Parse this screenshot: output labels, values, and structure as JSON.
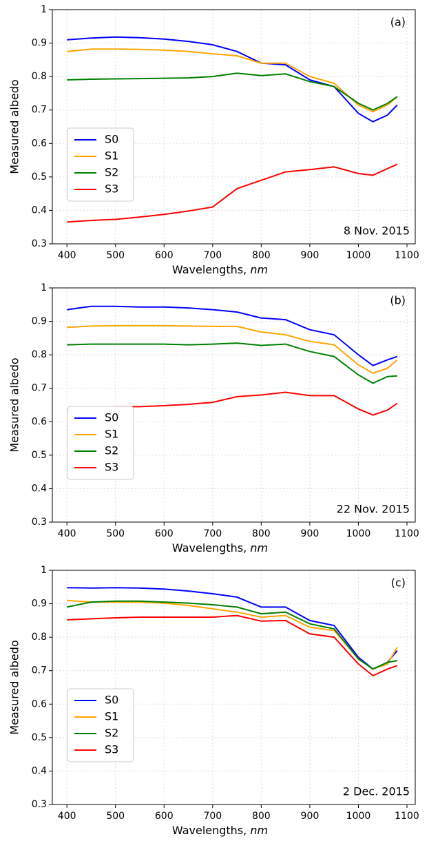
{
  "chart_data": [
    {
      "type": "line",
      "panel_label": "(a)",
      "annotation": "8 Nov. 2015",
      "ylabel": "Measured albedo",
      "xlabel": {
        "text": "Wavelengths,",
        "unit": "nm"
      },
      "x": [
        400,
        450,
        500,
        550,
        600,
        650,
        700,
        750,
        800,
        850,
        900,
        950,
        1000,
        1030,
        1060,
        1080
      ],
      "xlim": [
        370,
        1117
      ],
      "xticks": [
        400,
        500,
        600,
        700,
        800,
        900,
        1000,
        1100
      ],
      "ylim": [
        0.3,
        1.0
      ],
      "yticks": [
        0.3,
        0.4,
        0.5,
        0.6,
        0.7,
        0.8,
        0.9,
        1.0
      ],
      "grid": true,
      "legend_loc": "lower left",
      "series": [
        {
          "name": "S0",
          "color": "#0000ff",
          "values": [
            0.91,
            0.915,
            0.918,
            0.916,
            0.912,
            0.905,
            0.895,
            0.875,
            0.84,
            0.835,
            0.79,
            0.77,
            0.69,
            0.665,
            0.685,
            0.715
          ]
        },
        {
          "name": "S1",
          "color": "#ffa500",
          "values": [
            0.875,
            0.882,
            0.882,
            0.881,
            0.879,
            0.875,
            0.868,
            0.862,
            0.84,
            0.84,
            0.8,
            0.78,
            0.715,
            0.695,
            0.715,
            0.74
          ]
        },
        {
          "name": "S2",
          "color": "#008000",
          "values": [
            0.79,
            0.792,
            0.793,
            0.794,
            0.795,
            0.796,
            0.8,
            0.81,
            0.803,
            0.808,
            0.785,
            0.77,
            0.72,
            0.7,
            0.72,
            0.74
          ]
        },
        {
          "name": "S3",
          "color": "#ff0000",
          "values": [
            0.365,
            0.37,
            0.373,
            0.38,
            0.388,
            0.398,
            0.41,
            0.465,
            0.49,
            0.515,
            0.522,
            0.53,
            0.51,
            0.505,
            0.525,
            0.538
          ]
        }
      ]
    },
    {
      "type": "line",
      "panel_label": "(b)",
      "annotation": "22 Nov. 2015",
      "ylabel": "Measured albedo",
      "xlabel": {
        "text": "Wavelengths,",
        "unit": "nm"
      },
      "x": [
        400,
        450,
        500,
        550,
        600,
        650,
        700,
        750,
        800,
        850,
        900,
        950,
        1000,
        1030,
        1060,
        1080
      ],
      "xlim": [
        370,
        1117
      ],
      "xticks": [
        400,
        500,
        600,
        700,
        800,
        900,
        1000,
        1100
      ],
      "ylim": [
        0.3,
        1.0
      ],
      "yticks": [
        0.3,
        0.4,
        0.5,
        0.6,
        0.7,
        0.8,
        0.9,
        1.0
      ],
      "grid": true,
      "legend_loc": "lower left",
      "series": [
        {
          "name": "S0",
          "color": "#0000ff",
          "values": [
            0.935,
            0.945,
            0.945,
            0.943,
            0.943,
            0.94,
            0.935,
            0.928,
            0.91,
            0.905,
            0.875,
            0.86,
            0.8,
            0.768,
            0.785,
            0.795
          ]
        },
        {
          "name": "S1",
          "color": "#ffa500",
          "values": [
            0.882,
            0.886,
            0.887,
            0.887,
            0.887,
            0.886,
            0.885,
            0.885,
            0.868,
            0.86,
            0.84,
            0.83,
            0.77,
            0.745,
            0.76,
            0.785
          ]
        },
        {
          "name": "S2",
          "color": "#008000",
          "values": [
            0.83,
            0.832,
            0.832,
            0.832,
            0.832,
            0.83,
            0.832,
            0.835,
            0.828,
            0.832,
            0.81,
            0.795,
            0.74,
            0.715,
            0.735,
            0.737
          ]
        },
        {
          "name": "S3",
          "color": "#ff0000",
          "values": [
            0.632,
            0.642,
            0.645,
            0.645,
            0.648,
            0.652,
            0.658,
            0.675,
            0.68,
            0.688,
            0.678,
            0.678,
            0.638,
            0.62,
            0.635,
            0.655
          ]
        }
      ]
    },
    {
      "type": "line",
      "panel_label": "(c)",
      "annotation": "2 Dec. 2015",
      "ylabel": "Measured albedo",
      "xlabel": {
        "text": "Wavelengths,",
        "unit": "nm"
      },
      "x": [
        400,
        450,
        500,
        550,
        600,
        650,
        700,
        750,
        800,
        850,
        900,
        950,
        1000,
        1030,
        1060,
        1080
      ],
      "xlim": [
        370,
        1117
      ],
      "xticks": [
        400,
        500,
        600,
        700,
        800,
        900,
        1000,
        1100
      ],
      "ylim": [
        0.3,
        1.0
      ],
      "yticks": [
        0.3,
        0.4,
        0.5,
        0.6,
        0.7,
        0.8,
        0.9,
        1.0
      ],
      "grid": true,
      "legend_loc": "lower left",
      "series": [
        {
          "name": "S0",
          "color": "#0000ff",
          "values": [
            0.948,
            0.947,
            0.948,
            0.947,
            0.944,
            0.938,
            0.93,
            0.92,
            0.89,
            0.89,
            0.85,
            0.835,
            0.74,
            0.705,
            0.725,
            0.76
          ]
        },
        {
          "name": "S1",
          "color": "#ffa500",
          "values": [
            0.91,
            0.905,
            0.905,
            0.905,
            0.902,
            0.895,
            0.885,
            0.875,
            0.86,
            0.865,
            0.83,
            0.82,
            0.735,
            0.705,
            0.72,
            0.77
          ]
        },
        {
          "name": "S2",
          "color": "#008000",
          "values": [
            0.89,
            0.905,
            0.908,
            0.908,
            0.905,
            0.902,
            0.897,
            0.89,
            0.87,
            0.875,
            0.84,
            0.825,
            0.735,
            0.705,
            0.725,
            0.73
          ]
        },
        {
          "name": "S3",
          "color": "#ff0000",
          "values": [
            0.852,
            0.855,
            0.858,
            0.86,
            0.86,
            0.86,
            0.86,
            0.865,
            0.848,
            0.85,
            0.81,
            0.8,
            0.72,
            0.685,
            0.705,
            0.715
          ]
        }
      ]
    }
  ]
}
